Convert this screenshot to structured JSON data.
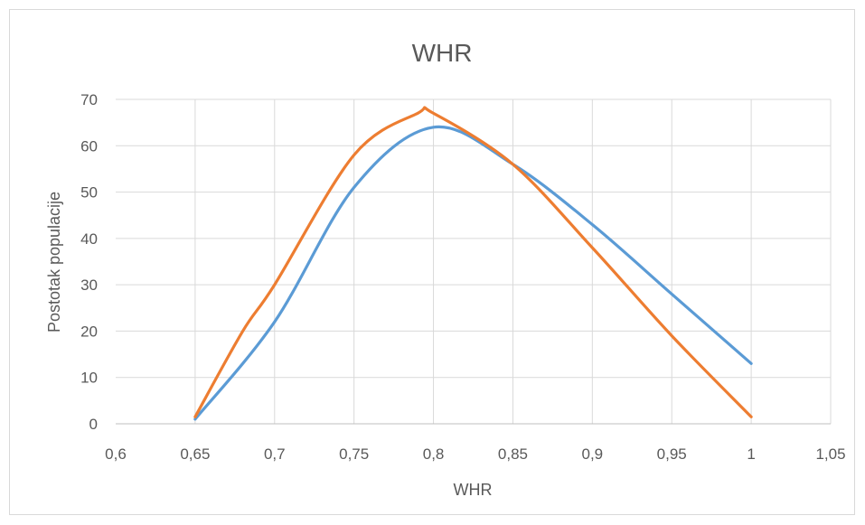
{
  "chart_data": {
    "type": "line",
    "title": "WHR",
    "xlabel": "WHR",
    "ylabel": "Postotak populacije",
    "xlim": [
      0.6,
      1.05
    ],
    "ylim": [
      0,
      70
    ],
    "x_ticks": [
      "0,6",
      "0,65",
      "0,7",
      "0,75",
      "0,8",
      "0,85",
      "0,9",
      "0,95",
      "1",
      "1,05"
    ],
    "y_ticks": [
      "0",
      "10",
      "20",
      "30",
      "40",
      "50",
      "60",
      "70"
    ],
    "grid": true,
    "legend": "none",
    "smooth": true,
    "series": [
      {
        "color": "#5b9bd5",
        "x": [
          0.65,
          0.7,
          0.75,
          0.8,
          0.85,
          0.9,
          0.95,
          1.0
        ],
        "y": [
          1,
          22,
          51,
          64,
          56,
          43,
          28,
          13
        ]
      },
      {
        "color": "#ed7d31",
        "x": [
          0.65,
          0.68,
          0.7,
          0.75,
          0.79,
          0.8,
          0.85,
          0.9,
          0.95,
          1.0
        ],
        "y": [
          1.5,
          20,
          30,
          58,
          67,
          67,
          56,
          38,
          19,
          1.5
        ]
      }
    ]
  }
}
